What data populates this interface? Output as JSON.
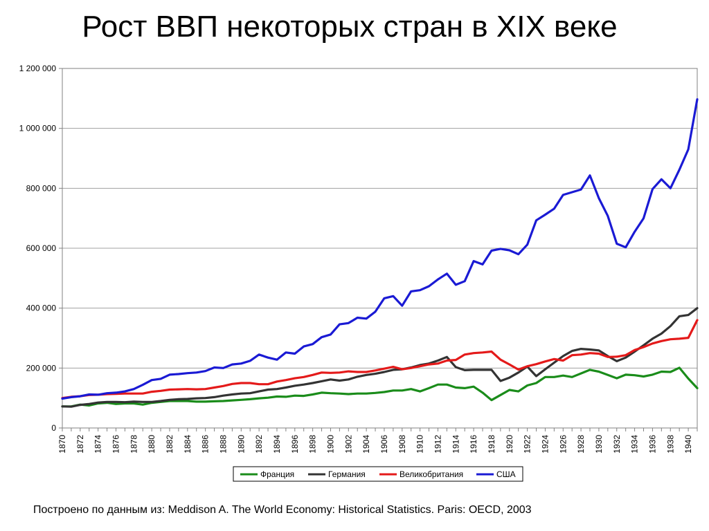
{
  "title": "Рост ВВП некоторых стран в XIX веке",
  "source": "Построено по данным из: Meddison A. The World Economy: Historical Statistics. Paris: OECD, 2003",
  "chart_data": {
    "type": "line",
    "title": "Рост ВВП некоторых стран в XIX веке",
    "xlabel": "",
    "ylabel": "",
    "xlim": [
      1870,
      1941
    ],
    "ylim": [
      0,
      1200000
    ],
    "grid": true,
    "legend_position": "bottom",
    "y_ticks": [
      0,
      200000,
      400000,
      600000,
      800000,
      1000000,
      1200000
    ],
    "y_tick_labels": [
      "0",
      "200 000",
      "400 000",
      "600 000",
      "800 000",
      "1 000 000",
      "1 200 000"
    ],
    "x_tick_labels": [
      "1870",
      "1872",
      "1874",
      "1876",
      "1878",
      "1880",
      "1882",
      "1884",
      "1886",
      "1888",
      "1890",
      "1892",
      "1894",
      "1896",
      "1898",
      "1900",
      "1902",
      "1904",
      "1906",
      "1908",
      "1910",
      "1912",
      "1914",
      "1916",
      "1918",
      "1920",
      "1922",
      "1924",
      "1926",
      "1928",
      "1930",
      "1932",
      "1934",
      "1936",
      "1938",
      "1940"
    ],
    "x": [
      1870,
      1871,
      1872,
      1873,
      1874,
      1875,
      1876,
      1877,
      1878,
      1879,
      1880,
      1881,
      1882,
      1883,
      1884,
      1885,
      1886,
      1887,
      1888,
      1889,
      1890,
      1891,
      1892,
      1893,
      1894,
      1895,
      1896,
      1897,
      1898,
      1899,
      1900,
      1901,
      1902,
      1903,
      1904,
      1905,
      1906,
      1907,
      1908,
      1909,
      1910,
      1911,
      1912,
      1913,
      1914,
      1915,
      1916,
      1917,
      1918,
      1919,
      1920,
      1921,
      1922,
      1923,
      1924,
      1925,
      1926,
      1927,
      1928,
      1929,
      1930,
      1931,
      1932,
      1933,
      1934,
      1935,
      1936,
      1937,
      1938,
      1939,
      1940,
      1941
    ],
    "series": [
      {
        "name": "Франция",
        "color": "#1a8c1a",
        "values": [
          72000,
          72000,
          78000,
          75000,
          82000,
          84000,
          80000,
          82000,
          82000,
          78000,
          84000,
          87000,
          90000,
          90000,
          90000,
          88000,
          88000,
          89000,
          90000,
          92000,
          94000,
          96000,
          99000,
          101000,
          105000,
          104000,
          108000,
          107000,
          112000,
          118000,
          116000,
          115000,
          113000,
          115000,
          115000,
          117000,
          120000,
          125000,
          125000,
          130000,
          122000,
          133000,
          145000,
          145000,
          135000,
          133000,
          138000,
          118000,
          93000,
          110000,
          127000,
          122000,
          142000,
          150000,
          170000,
          170000,
          175000,
          170000,
          182000,
          194000,
          188000,
          177000,
          166000,
          178000,
          176000,
          172000,
          178000,
          188000,
          187000,
          201000,
          165000,
          133000
        ]
      },
      {
        "name": "Германия",
        "color": "#333333",
        "values": [
          72000,
          71000,
          77000,
          80000,
          85000,
          87000,
          87000,
          86000,
          88000,
          87000,
          87000,
          90000,
          94000,
          96000,
          97000,
          99000,
          100000,
          103000,
          108000,
          112000,
          115000,
          116000,
          122000,
          128000,
          130000,
          135000,
          141000,
          145000,
          150000,
          156000,
          162000,
          158000,
          162000,
          171000,
          177000,
          181000,
          187000,
          194000,
          196000,
          202000,
          210000,
          215000,
          225000,
          237000,
          203000,
          193000,
          194000,
          194000,
          194000,
          157000,
          168000,
          185000,
          205000,
          173000,
          196000,
          218000,
          240000,
          257000,
          264000,
          262000,
          259000,
          240000,
          223000,
          235000,
          255000,
          276000,
          298000,
          315000,
          340000,
          373000,
          377000,
          400000
        ]
      },
      {
        "name": "Великобритания",
        "color": "#e41a1a",
        "values": [
          100000,
          104000,
          106000,
          110000,
          111000,
          113000,
          114000,
          115000,
          115000,
          115000,
          121000,
          124000,
          128000,
          129000,
          130000,
          129000,
          130000,
          135000,
          140000,
          147000,
          150000,
          150000,
          146000,
          146000,
          155000,
          160000,
          166000,
          170000,
          177000,
          185000,
          184000,
          185000,
          189000,
          187000,
          187000,
          192000,
          198000,
          204000,
          196000,
          200000,
          206000,
          212000,
          215000,
          225000,
          227000,
          245000,
          250000,
          252000,
          255000,
          228000,
          212000,
          195000,
          206000,
          213000,
          222000,
          230000,
          225000,
          243000,
          245000,
          250000,
          248000,
          237000,
          238000,
          243000,
          260000,
          270000,
          282000,
          290000,
          296000,
          298000,
          301000,
          360000
        ]
      },
      {
        "name": "США",
        "color": "#1a1ad4",
        "values": [
          98000,
          103000,
          106000,
          112000,
          111000,
          116000,
          118000,
          122000,
          130000,
          144000,
          160000,
          164000,
          178000,
          180000,
          183000,
          185000,
          190000,
          202000,
          200000,
          212000,
          215000,
          224000,
          245000,
          235000,
          228000,
          252000,
          248000,
          272000,
          280000,
          303000,
          312000,
          346000,
          350000,
          368000,
          365000,
          388000,
          433000,
          440000,
          408000,
          456000,
          460000,
          473000,
          496000,
          515000,
          478000,
          490000,
          557000,
          546000,
          592000,
          598000,
          593000,
          580000,
          612000,
          693000,
          712000,
          732000,
          778000,
          787000,
          796000,
          843000,
          767000,
          708000,
          615000,
          603000,
          655000,
          700000,
          797000,
          830000,
          800000,
          862000,
          930000,
          1097000
        ]
      }
    ]
  }
}
